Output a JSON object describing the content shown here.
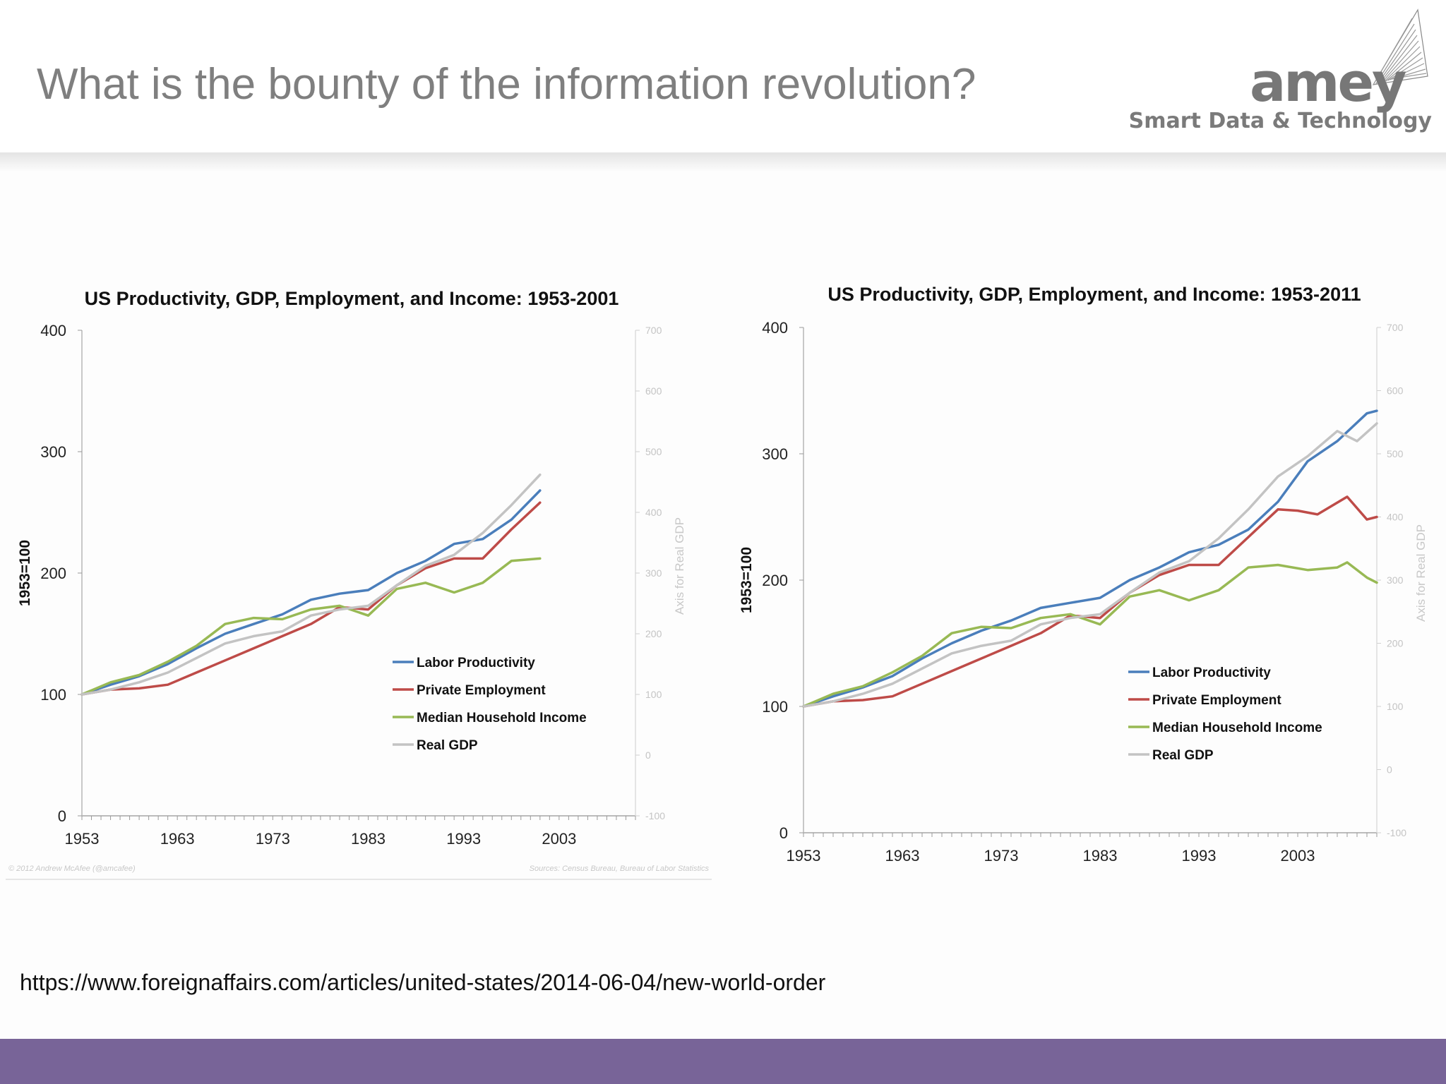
{
  "header": {
    "title": "What is the bounty of the information revolution?",
    "logo_text": "amey",
    "tagline": "Smart Data & Technology"
  },
  "source_url": "https://www.foreignaffairs.com/articles/united-states/2014-06-04/new-world-order",
  "colors": {
    "footer_bar": "#786498",
    "labor_productivity": "#4a7ebb",
    "private_employment": "#be4b48",
    "median_household_income": "#98b954",
    "real_gdp": "#c3c3c3"
  },
  "chart_data": [
    {
      "type": "line",
      "title": "US Productivity, GDP, Employment, and Income: 1953-2001",
      "ylabel": "1953=100",
      "ylabel_right": "Axis for Real GDP",
      "ylim": [
        0,
        400
      ],
      "yticks": [
        "0",
        "100",
        "200",
        "300",
        "400"
      ],
      "ylim_right": [
        -100,
        700
      ],
      "yticks_right": [
        "-100",
        "0",
        "100",
        "200",
        "300",
        "400",
        "500",
        "600",
        "700"
      ],
      "xlim": [
        1953,
        2011
      ],
      "xticks": [
        "1953",
        "1963",
        "1973",
        "1983",
        "1993",
        "2003"
      ],
      "legend_position": "center-right",
      "credit_left": "© 2012 Andrew McAfee (@amcafee)",
      "credit_right": "Sources: Census Bureau, Bureau of Labor Statistics",
      "series": [
        {
          "name": "Labor Productivity",
          "x": [
            1953,
            1956,
            1959,
            1962,
            1965,
            1968,
            1971,
            1974,
            1977,
            1980,
            1983,
            1986,
            1989,
            1992,
            1995,
            1998,
            2001
          ],
          "y": [
            100,
            108,
            115,
            125,
            138,
            150,
            158,
            166,
            178,
            183,
            186,
            200,
            210,
            224,
            228,
            244,
            268
          ]
        },
        {
          "name": "Private Employment",
          "x": [
            1953,
            1956,
            1959,
            1962,
            1965,
            1968,
            1971,
            1974,
            1977,
            1980,
            1983,
            1986,
            1989,
            1992,
            1995,
            1998,
            2001
          ],
          "y": [
            100,
            104,
            105,
            108,
            118,
            128,
            138,
            148,
            158,
            172,
            170,
            190,
            204,
            212,
            212,
            236,
            258
          ]
        },
        {
          "name": "Median Household Income",
          "x": [
            1953,
            1956,
            1959,
            1962,
            1965,
            1968,
            1971,
            1974,
            1977,
            1980,
            1983,
            1986,
            1989,
            1992,
            1995,
            1998,
            2001
          ],
          "y": [
            100,
            110,
            116,
            127,
            140,
            158,
            163,
            162,
            170,
            173,
            165,
            187,
            192,
            184,
            192,
            210,
            212
          ]
        },
        {
          "name": "Real GDP",
          "x": [
            1953,
            1956,
            1959,
            1962,
            1965,
            1968,
            1971,
            1974,
            1977,
            1980,
            1983,
            1986,
            1989,
            1992,
            1995,
            1998,
            2001
          ],
          "y": [
            100,
            104,
            110,
            118,
            130,
            142,
            148,
            152,
            165,
            170,
            173,
            190,
            206,
            215,
            233,
            256,
            281
          ]
        }
      ]
    },
    {
      "type": "line",
      "title": "US Productivity, GDP, Employment, and Income: 1953-2011",
      "ylabel": "1953=100",
      "ylabel_right": "Axis for Real GDP",
      "ylim": [
        0,
        400
      ],
      "yticks": [
        "0",
        "100",
        "200",
        "300",
        "400"
      ],
      "ylim_right": [
        -100,
        700
      ],
      "yticks_right": [
        "-100",
        "0",
        "100",
        "200",
        "300",
        "400",
        "500",
        "600",
        "700"
      ],
      "xlim": [
        1953,
        2011
      ],
      "xticks": [
        "1953",
        "1963",
        "1973",
        "1983",
        "1993",
        "2003"
      ],
      "legend_position": "center-right",
      "series": [
        {
          "name": "Labor Productivity",
          "x": [
            1953,
            1956,
            1959,
            1962,
            1965,
            1968,
            1971,
            1974,
            1977,
            1980,
            1983,
            1986,
            1989,
            1992,
            1995,
            1998,
            2001,
            2004,
            2007,
            2010,
            2011
          ],
          "y": [
            100,
            108,
            115,
            124,
            138,
            150,
            160,
            168,
            178,
            182,
            186,
            200,
            210,
            222,
            228,
            240,
            262,
            294,
            310,
            332,
            334
          ]
        },
        {
          "name": "Private Employment",
          "x": [
            1953,
            1956,
            1959,
            1962,
            1965,
            1968,
            1971,
            1974,
            1977,
            1980,
            1983,
            1986,
            1989,
            1992,
            1995,
            1998,
            2001,
            2003,
            2005,
            2008,
            2010,
            2011
          ],
          "y": [
            100,
            104,
            105,
            108,
            118,
            128,
            138,
            148,
            158,
            172,
            170,
            190,
            204,
            212,
            212,
            234,
            256,
            255,
            252,
            266,
            248,
            250
          ]
        },
        {
          "name": "Median Household Income",
          "x": [
            1953,
            1956,
            1959,
            1962,
            1965,
            1968,
            1971,
            1974,
            1977,
            1980,
            1983,
            1986,
            1989,
            1992,
            1995,
            1998,
            2001,
            2004,
            2007,
            2008,
            2010,
            2011
          ],
          "y": [
            100,
            110,
            116,
            127,
            140,
            158,
            163,
            162,
            170,
            173,
            165,
            187,
            192,
            184,
            192,
            210,
            212,
            208,
            210,
            214,
            202,
            198
          ]
        },
        {
          "name": "Real GDP",
          "x": [
            1953,
            1956,
            1959,
            1962,
            1965,
            1968,
            1971,
            1974,
            1977,
            1980,
            1983,
            1986,
            1989,
            1992,
            1995,
            1998,
            2001,
            2004,
            2007,
            2009,
            2011
          ],
          "y": [
            100,
            104,
            110,
            118,
            130,
            142,
            148,
            152,
            165,
            170,
            173,
            190,
            206,
            215,
            233,
            256,
            282,
            298,
            318,
            310,
            324
          ]
        }
      ]
    }
  ]
}
